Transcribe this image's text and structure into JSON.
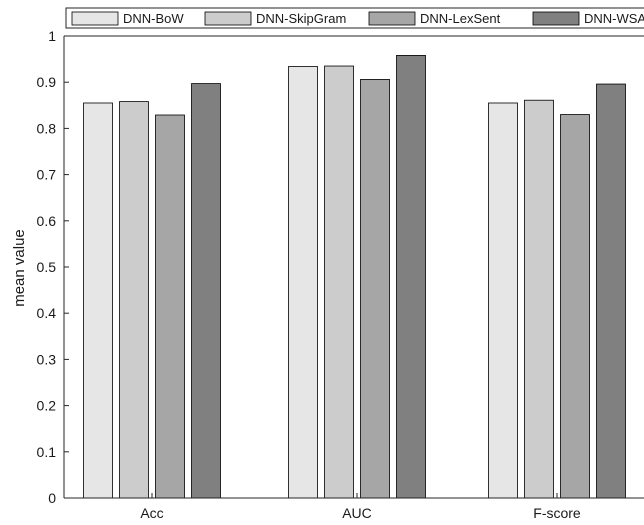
{
  "chart_data": {
    "type": "bar",
    "title": "",
    "xlabel": "",
    "ylabel": "mean value",
    "ylim": [
      0,
      1
    ],
    "yticks": [
      "0",
      "0.1",
      "0.2",
      "0.3",
      "0.4",
      "0.5",
      "0.6",
      "0.7",
      "0.8",
      "0.9",
      "1"
    ],
    "categories": [
      "Acc",
      "AUC",
      "F-score"
    ],
    "series": [
      {
        "name": "DNN-BoW",
        "color": "#e6e6e6",
        "values": [
          0.855,
          0.934,
          0.855
        ]
      },
      {
        "name": "DNN-SkipGram",
        "color": "#cccccc",
        "values": [
          0.858,
          0.935,
          0.861
        ]
      },
      {
        "name": "DNN-LexSent",
        "color": "#a6a6a6",
        "values": [
          0.829,
          0.906,
          0.83
        ]
      },
      {
        "name": "DNN-WSA",
        "color": "#808080",
        "values": [
          0.897,
          0.958,
          0.896
        ]
      }
    ],
    "legend": "top",
    "grid": false
  }
}
